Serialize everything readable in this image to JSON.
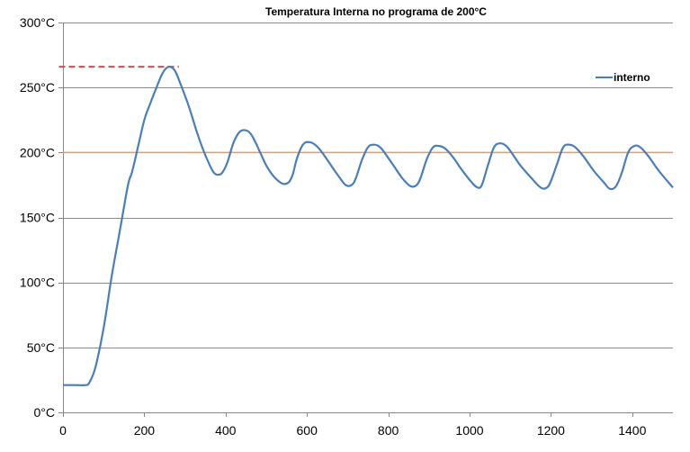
{
  "chart_data": {
    "type": "line",
    "title": "Temperatura Interna no programa de 200°C",
    "xlabel": "",
    "ylabel": "",
    "xlim": [
      0,
      1500
    ],
    "ylim": [
      0,
      300
    ],
    "x_ticks": [
      0,
      200,
      400,
      600,
      800,
      1000,
      1200,
      1400
    ],
    "y_ticks": [
      0,
      50,
      100,
      150,
      200,
      250,
      300
    ],
    "y_tick_labels": [
      "0°C",
      "50°C",
      "100°C",
      "150°C",
      "200°C",
      "250°C",
      "300°C"
    ],
    "grid": "horizontal",
    "legend": {
      "position": "right",
      "entries": [
        "interno"
      ]
    },
    "series": [
      {
        "name": "interno",
        "color": "#4a7ebb",
        "x": [
          0,
          30,
          55,
          65,
          80,
          100,
          120,
          140,
          160,
          170,
          185,
          200,
          215,
          230,
          245,
          260,
          275,
          290,
          310,
          330,
          350,
          370,
          385,
          395,
          405,
          420,
          435,
          450,
          460,
          470,
          485,
          500,
          520,
          540,
          555,
          565,
          575,
          590,
          605,
          620,
          635,
          655,
          675,
          695,
          710,
          720,
          735,
          750,
          765,
          780,
          795,
          815,
          835,
          855,
          870,
          880,
          895,
          910,
          925,
          940,
          960,
          980,
          1005,
          1020,
          1030,
          1045,
          1060,
          1075,
          1090,
          1105,
          1125,
          1150,
          1175,
          1190,
          1200,
          1215,
          1230,
          1245,
          1260,
          1280,
          1305,
          1330,
          1345,
          1360,
          1375,
          1390,
          1405,
          1420,
          1440,
          1465,
          1500
        ],
        "values": [
          21,
          21,
          21,
          23,
          35,
          65,
          105,
          140,
          175,
          185,
          205,
          225,
          238,
          250,
          261,
          266,
          263,
          252,
          235,
          215,
          198,
          185,
          183,
          186,
          193,
          208,
          216,
          217,
          215,
          210,
          200,
          190,
          181,
          176,
          177,
          183,
          195,
          206,
          208,
          206,
          201,
          192,
          183,
          175,
          175,
          180,
          194,
          204,
          206,
          204,
          198,
          189,
          180,
          174,
          175,
          181,
          195,
          204,
          205,
          203,
          196,
          187,
          177,
          173,
          175,
          190,
          204,
          207,
          205,
          199,
          190,
          181,
          173,
          173,
          178,
          191,
          204,
          206,
          204,
          197,
          186,
          177,
          172,
          174,
          185,
          200,
          205,
          204,
          197,
          186,
          173
        ]
      }
    ],
    "reference_lines": [
      {
        "orientation": "horizontal",
        "y": 200,
        "x_from": 0,
        "x_to": 1500,
        "style": "solid",
        "color": "#f79646"
      },
      {
        "orientation": "horizontal",
        "y": 266,
        "x_from": -10,
        "x_to": 285,
        "style": "dashed",
        "color": "#e04848"
      }
    ]
  }
}
